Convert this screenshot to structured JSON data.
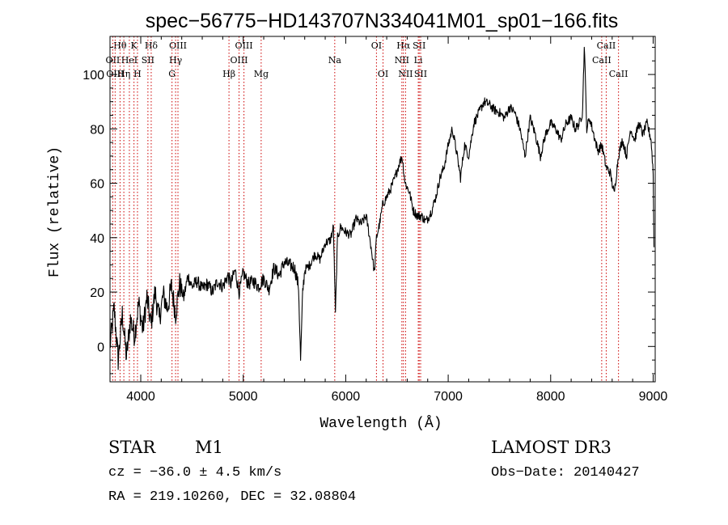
{
  "chart_data": {
    "type": "line",
    "title": "spec−56775−HD143707N334041M01_sp01−166.fits",
    "xlabel": "Wavelength (Å)",
    "ylabel": "Flux (relative)",
    "xlim": [
      3700,
      9020
    ],
    "ylim": [
      -13,
      114
    ],
    "xticks": [
      4000,
      5000,
      6000,
      7000,
      8000,
      9000
    ],
    "yticks": [
      0,
      20,
      40,
      60,
      80,
      100
    ],
    "line_color": "#000000",
    "marker_color": "#cc0000",
    "grid": false,
    "series": [
      {
        "name": "flux",
        "x": [
          3700,
          3740,
          3780,
          3820,
          3860,
          3900,
          3940,
          3980,
          4020,
          4060,
          4100,
          4140,
          4180,
          4220,
          4260,
          4300,
          4340,
          4380,
          4420,
          4460,
          4500,
          4550,
          4600,
          4650,
          4700,
          4750,
          4800,
          4850,
          4880,
          4920,
          4960,
          5000,
          5050,
          5100,
          5150,
          5200,
          5250,
          5300,
          5350,
          5400,
          5450,
          5500,
          5540,
          5560,
          5580,
          5600,
          5650,
          5700,
          5750,
          5800,
          5850,
          5880,
          5900,
          5920,
          5950,
          6000,
          6050,
          6100,
          6150,
          6200,
          6250,
          6280,
          6300,
          6330,
          6360,
          6400,
          6440,
          6480,
          6520,
          6550,
          6580,
          6620,
          6660,
          6700,
          6740,
          6780,
          6800,
          6840,
          6880,
          6920,
          6960,
          7000,
          7040,
          7080,
          7120,
          7160,
          7200,
          7250,
          7300,
          7350,
          7400,
          7450,
          7500,
          7550,
          7600,
          7650,
          7700,
          7750,
          7800,
          7850,
          7900,
          7950,
          8000,
          8050,
          8100,
          8150,
          8200,
          8240,
          8280,
          8310,
          8330,
          8350,
          8380,
          8420,
          8460,
          8500,
          8540,
          8580,
          8620,
          8660,
          8700,
          8740,
          8780,
          8820,
          8860,
          8900,
          8940,
          8980,
          9000,
          9010
        ],
        "y": [
          0,
          14,
          -5,
          12,
          -4,
          10,
          4,
          16,
          6,
          18,
          8,
          20,
          10,
          19,
          14,
          22,
          12,
          23,
          18,
          26,
          22,
          24,
          21,
          23,
          20,
          24,
          22,
          26,
          23,
          28,
          20,
          27,
          23,
          24,
          22,
          25,
          21,
          29,
          26,
          31,
          30,
          29,
          22,
          -5,
          20,
          28,
          30,
          34,
          32,
          38,
          39,
          44,
          12,
          40,
          44,
          42,
          41,
          47,
          45,
          48,
          36,
          27,
          40,
          45,
          52,
          55,
          58,
          62,
          67,
          70,
          60,
          57,
          50,
          48,
          48,
          46,
          47,
          50,
          55,
          62,
          66,
          74,
          80,
          72,
          62,
          74,
          70,
          82,
          86,
          90,
          89,
          87,
          86,
          84,
          88,
          86,
          80,
          70,
          84,
          78,
          70,
          78,
          82,
          80,
          76,
          82,
          84,
          80,
          82,
          86,
          112,
          80,
          84,
          78,
          72,
          74,
          66,
          64,
          56,
          70,
          76,
          70,
          80,
          76,
          82,
          78,
          82,
          76,
          64,
          30
        ]
      }
    ],
    "line_markers": [
      {
        "label": "Hθ",
        "x": 3798,
        "row": 1
      },
      {
        "label": "OII",
        "x": 3727,
        "row": 2
      },
      {
        "label": "OIII",
        "x": 3750,
        "row": 3
      },
      {
        "label": "K",
        "x": 3934,
        "row": 1
      },
      {
        "label": "HeI",
        "x": 3889,
        "row": 2
      },
      {
        "label": "Hη",
        "x": 3835,
        "row": 3
      },
      {
        "label": "Hδ",
        "x": 4102,
        "row": 1
      },
      {
        "label": "SII",
        "x": 4070,
        "row": 2
      },
      {
        "label": "H",
        "x": 3968,
        "row": 3
      },
      {
        "label": "OIII",
        "x": 4363,
        "row": 1
      },
      {
        "label": "Hγ",
        "x": 4340,
        "row": 2
      },
      {
        "label": "G",
        "x": 4305,
        "row": 3
      },
      {
        "label": "OIII",
        "x": 5007,
        "row": 1
      },
      {
        "label": "OIII",
        "x": 4959,
        "row": 2
      },
      {
        "label": "Hβ",
        "x": 4861,
        "row": 3
      },
      {
        "label": "Mg",
        "x": 5175,
        "row": 3
      },
      {
        "label": "Na",
        "x": 5893,
        "row": 2
      },
      {
        "label": "OI",
        "x": 6300,
        "row": 1
      },
      {
        "label": "OI",
        "x": 6364,
        "row": 3
      },
      {
        "label": "Hα",
        "x": 6563,
        "row": 1
      },
      {
        "label": "SII",
        "x": 6717,
        "row": 1
      },
      {
        "label": "NII",
        "x": 6548,
        "row": 2
      },
      {
        "label": "Li",
        "x": 6708,
        "row": 2
      },
      {
        "label": "NII",
        "x": 6584,
        "row": 3
      },
      {
        "label": "SII",
        "x": 6731,
        "row": 3
      },
      {
        "label": "CaII",
        "x": 8542,
        "row": 1
      },
      {
        "label": "CaII",
        "x": 8498,
        "row": 2
      },
      {
        "label": "CaII",
        "x": 8662,
        "row": 3
      }
    ]
  },
  "info": {
    "object_class": "STAR",
    "subclass": "M1",
    "survey": "LAMOST DR3",
    "cz": "cz = −36.0 ± 4.5 km/s",
    "obs_date": "Obs−Date: 20140427",
    "coords": "RA = 219.10260, DEC =  32.08804"
  }
}
